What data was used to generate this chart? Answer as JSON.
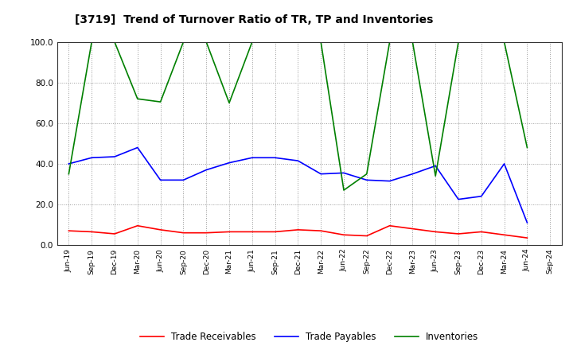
{
  "title": "[3719]  Trend of Turnover Ratio of TR, TP and Inventories",
  "x_labels": [
    "Jun-19",
    "Sep-19",
    "Dec-19",
    "Mar-20",
    "Jun-20",
    "Sep-20",
    "Dec-20",
    "Mar-21",
    "Jun-21",
    "Sep-21",
    "Dec-21",
    "Mar-22",
    "Jun-22",
    "Sep-22",
    "Dec-22",
    "Mar-23",
    "Jun-23",
    "Sep-23",
    "Dec-23",
    "Mar-24",
    "Jun-24",
    "Sep-24"
  ],
  "trade_receivables": [
    7.0,
    6.5,
    5.5,
    9.5,
    7.5,
    6.0,
    6.0,
    6.5,
    6.5,
    6.5,
    7.5,
    7.0,
    5.0,
    4.5,
    9.5,
    8.0,
    6.5,
    5.5,
    6.5,
    5.0,
    3.5,
    null
  ],
  "trade_payables": [
    40.0,
    43.0,
    43.5,
    48.0,
    32.0,
    32.0,
    37.0,
    40.5,
    43.0,
    43.0,
    41.5,
    35.0,
    35.5,
    32.0,
    31.5,
    35.0,
    39.0,
    22.5,
    24.0,
    40.0,
    11.0,
    null
  ],
  "inventories": [
    35.0,
    100.0,
    100.0,
    72.0,
    70.5,
    100.0,
    100.0,
    70.0,
    100.0,
    100.0,
    100.0,
    100.0,
    27.0,
    35.0,
    100.0,
    100.0,
    34.0,
    100.0,
    100.0,
    100.0,
    48.0,
    null
  ],
  "ylim": [
    0.0,
    100.0
  ],
  "yticks": [
    0.0,
    20.0,
    40.0,
    60.0,
    80.0,
    100.0
  ],
  "color_tr": "#ff0000",
  "color_tp": "#0000ff",
  "color_inv": "#008000",
  "legend_labels": [
    "Trade Receivables",
    "Trade Payables",
    "Inventories"
  ],
  "background_color": "#ffffff",
  "grid_color": "#aaaaaa"
}
